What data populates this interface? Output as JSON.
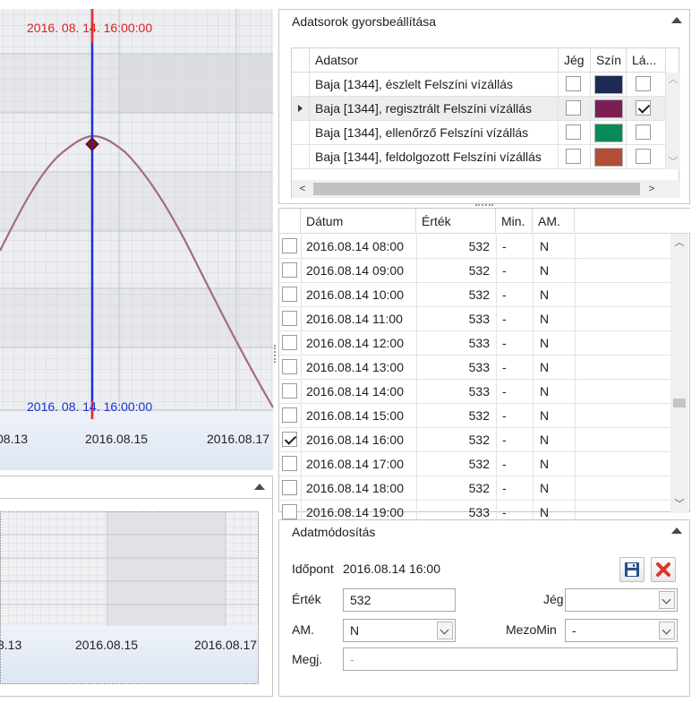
{
  "chart": {
    "top_cursor_label": "2016. 08. 14. 16:00:00",
    "bottom_cursor_label": "2016. 08. 14. 16:00:00",
    "x_tick_labels": [
      "08.13",
      "2016.08.15",
      "2016.08.17"
    ],
    "colors": {
      "cursor": "#1b2fd6",
      "cursor_label_top": "#e02020",
      "series": "#a05070",
      "marker": "#7a1a4a"
    }
  },
  "overview": {
    "x_tick_labels": [
      "8.13",
      "2016.08.15",
      "2016.08.17"
    ]
  },
  "dataset_panel": {
    "title": "Adatsorok gyorsbeállítása",
    "columns": [
      "Adatsor",
      "Jég",
      "Szín",
      "Lá..."
    ],
    "rows": [
      {
        "name": "Baja [1344], észlelt Felszíni vízállás",
        "ice": false,
        "color": "#1c2a55",
        "visible": false,
        "current": false
      },
      {
        "name": "Baja [1344], regisztrált Felszíni vízállás",
        "ice": false,
        "color": "#7a1f56",
        "visible": true,
        "current": true
      },
      {
        "name": "Baja [1344], ellenőrző Felszíni vízállás",
        "ice": false,
        "color": "#0a8a57",
        "visible": false,
        "current": false
      },
      {
        "name": "Baja [1344], feldolgozott Felszíni vízállás",
        "ice": false,
        "color": "#b24f35",
        "visible": false,
        "current": false
      }
    ]
  },
  "data_table": {
    "columns": [
      "Dátum",
      "Érték",
      "Min.",
      "AM."
    ],
    "rows": [
      {
        "checked": false,
        "date": "2016.08.14 08:00",
        "value": "532",
        "min": "-",
        "am": "N"
      },
      {
        "checked": false,
        "date": "2016.08.14 09:00",
        "value": "532",
        "min": "-",
        "am": "N"
      },
      {
        "checked": false,
        "date": "2016.08.14 10:00",
        "value": "532",
        "min": "-",
        "am": "N"
      },
      {
        "checked": false,
        "date": "2016.08.14 11:00",
        "value": "533",
        "min": "-",
        "am": "N"
      },
      {
        "checked": false,
        "date": "2016.08.14 12:00",
        "value": "533",
        "min": "-",
        "am": "N"
      },
      {
        "checked": false,
        "date": "2016.08.14 13:00",
        "value": "533",
        "min": "-",
        "am": "N"
      },
      {
        "checked": false,
        "date": "2016.08.14 14:00",
        "value": "533",
        "min": "-",
        "am": "N"
      },
      {
        "checked": false,
        "date": "2016.08.14 15:00",
        "value": "532",
        "min": "-",
        "am": "N"
      },
      {
        "checked": true,
        "date": "2016.08.14 16:00",
        "value": "532",
        "min": "-",
        "am": "N"
      },
      {
        "checked": false,
        "date": "2016.08.14 17:00",
        "value": "532",
        "min": "-",
        "am": "N"
      },
      {
        "checked": false,
        "date": "2016.08.14 18:00",
        "value": "532",
        "min": "-",
        "am": "N"
      },
      {
        "checked": false,
        "date": "2016.08.14 19:00",
        "value": "533",
        "min": "-",
        "am": "N"
      }
    ]
  },
  "edit_panel": {
    "title": "Adatmódosítás",
    "timestamp_label": "Időpont",
    "timestamp_value": "2016.08.14 16:00",
    "value_label": "Érték",
    "value": "532",
    "ice_label": "Jég",
    "ice_value": "",
    "am_label": "AM.",
    "am_value": "N",
    "mezomin_label": "MezoMin",
    "mezomin_value": "-",
    "note_label": "Megj.",
    "note_placeholder": "-"
  }
}
